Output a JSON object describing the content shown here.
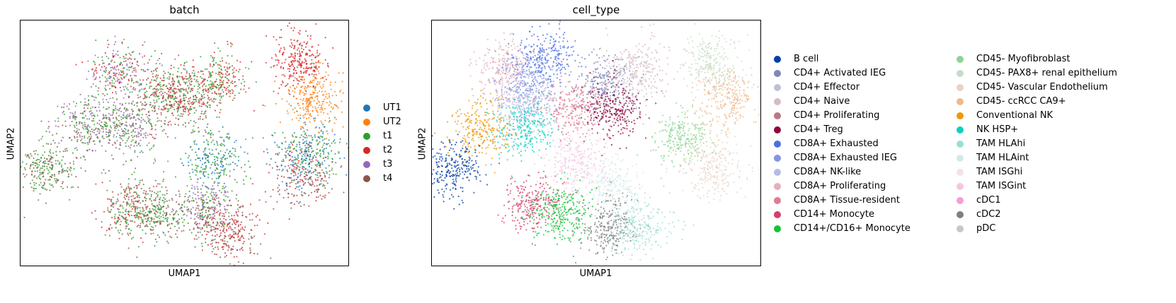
{
  "chart_data": [
    {
      "type": "scatter",
      "title": "batch",
      "xlabel": "UMAP1",
      "ylabel": "UMAP2",
      "legend_placement": "right",
      "grid": false,
      "series": [
        {
          "name": "UT1",
          "color": "#1f77b4"
        },
        {
          "name": "UT2",
          "color": "#ff7f0e"
        },
        {
          "name": "t1",
          "color": "#2ca02c"
        },
        {
          "name": "t2",
          "color": "#d62728"
        },
        {
          "name": "t3",
          "color": "#9467bd"
        },
        {
          "name": "t4",
          "color": "#8c564b"
        }
      ],
      "clusters": [
        {
          "x": 0.3,
          "y": 0.78,
          "mix": [
            "t1",
            "t2",
            "t3"
          ]
        },
        {
          "x": 0.43,
          "y": 0.7,
          "mix": [
            "t1",
            "t4",
            "t2"
          ]
        },
        {
          "x": 0.6,
          "y": 0.75,
          "mix": [
            "t1",
            "t2"
          ]
        },
        {
          "x": 0.21,
          "y": 0.57,
          "mix": [
            "t4",
            "t1",
            "t3"
          ]
        },
        {
          "x": 0.33,
          "y": 0.57,
          "mix": [
            "t3",
            "t1",
            "t4"
          ]
        },
        {
          "x": 0.5,
          "y": 0.69,
          "mix": [
            "t2",
            "t4",
            "t1"
          ]
        },
        {
          "x": 0.85,
          "y": 0.83,
          "mix": [
            "t2"
          ]
        },
        {
          "x": 0.89,
          "y": 0.68,
          "mix": [
            "UT2"
          ]
        },
        {
          "x": 0.88,
          "y": 0.47,
          "mix": [
            "t1",
            "UT1"
          ]
        },
        {
          "x": 0.86,
          "y": 0.37,
          "mix": [
            "t2",
            "t4",
            "UT1"
          ]
        },
        {
          "x": 0.08,
          "y": 0.4,
          "mix": [
            "t4",
            "t1"
          ]
        },
        {
          "x": 0.59,
          "y": 0.43,
          "mix": [
            "UT1",
            "t1"
          ]
        },
        {
          "x": 0.33,
          "y": 0.23,
          "mix": [
            "t4",
            "t1",
            "t2"
          ]
        },
        {
          "x": 0.43,
          "y": 0.22,
          "mix": [
            "t1",
            "t4"
          ]
        },
        {
          "x": 0.56,
          "y": 0.22,
          "mix": [
            "t4",
            "t3",
            "t1"
          ]
        },
        {
          "x": 0.64,
          "y": 0.14,
          "mix": [
            "t2",
            "t4"
          ]
        }
      ]
    },
    {
      "type": "scatter",
      "title": "cell_type",
      "xlabel": "UMAP1",
      "ylabel": "UMAP2",
      "legend_placement": "right",
      "grid": false,
      "series": [
        {
          "name": "B cell",
          "color": "#023fa5"
        },
        {
          "name": "CD4+ Activated IEG",
          "color": "#7d87b9"
        },
        {
          "name": "CD4+ Effector",
          "color": "#bec1d4"
        },
        {
          "name": "CD4+ Naive",
          "color": "#d6bcc0"
        },
        {
          "name": "CD4+ Proliferating",
          "color": "#bb7784"
        },
        {
          "name": "CD4+ Treg",
          "color": "#8e063b"
        },
        {
          "name": "CD8A+ Exhausted",
          "color": "#4a6fe3"
        },
        {
          "name": "CD8A+ Exhausted IEG",
          "color": "#8595e1"
        },
        {
          "name": "CD8A+ NK-like",
          "color": "#b5bbe3"
        },
        {
          "name": "CD8A+ Proliferating",
          "color": "#e6afb9"
        },
        {
          "name": "CD8A+ Tissue-resident",
          "color": "#e07b91"
        },
        {
          "name": "CD14+ Monocyte",
          "color": "#d33f6a"
        },
        {
          "name": "CD14+/CD16+ Monocyte",
          "color": "#11c638"
        },
        {
          "name": "CD45- Myofibroblast",
          "color": "#8dd593"
        },
        {
          "name": "CD45- PAX8+ renal epithelium",
          "color": "#c6dec7"
        },
        {
          "name": "CD45- Vascular Endothelium",
          "color": "#ead3c6"
        },
        {
          "name": "CD45- ccRCC CA9+",
          "color": "#f0b98d"
        },
        {
          "name": "Conventional NK",
          "color": "#ef9708"
        },
        {
          "name": "NK HSP+",
          "color": "#0fcfc0"
        },
        {
          "name": "TAM HLAhi",
          "color": "#9cded6"
        },
        {
          "name": "TAM HLAint",
          "color": "#d5eae7"
        },
        {
          "name": "TAM ISGhi",
          "color": "#f3e1eb"
        },
        {
          "name": "TAM ISGint",
          "color": "#f6c4e1"
        },
        {
          "name": "cDC1",
          "color": "#f79cd4"
        },
        {
          "name": "cDC2",
          "color": "#7f7f7f"
        },
        {
          "name": "pDC",
          "color": "#c7c7c7"
        }
      ],
      "clusters": [
        {
          "x": 0.22,
          "y": 0.8,
          "type": "CD8A+ Proliferating"
        },
        {
          "x": 0.35,
          "y": 0.85,
          "type": "CD8A+ Exhausted"
        },
        {
          "x": 0.29,
          "y": 0.75,
          "type": "CD8A+ Exhausted IEG"
        },
        {
          "x": 0.53,
          "y": 0.74,
          "type": "CD4+ Activated IEG"
        },
        {
          "x": 0.62,
          "y": 0.79,
          "type": "CD4+ Naive"
        },
        {
          "x": 0.43,
          "y": 0.64,
          "type": "CD8A+ Tissue-resident"
        },
        {
          "x": 0.55,
          "y": 0.63,
          "type": "CD4+ Treg"
        },
        {
          "x": 0.29,
          "y": 0.65,
          "type": "CD8A+ NK-like"
        },
        {
          "x": 0.15,
          "y": 0.56,
          "type": "Conventional NK"
        },
        {
          "x": 0.28,
          "y": 0.56,
          "type": "NK HSP+"
        },
        {
          "x": 0.85,
          "y": 0.82,
          "type": "CD45- PAX8+ renal epithelium"
        },
        {
          "x": 0.9,
          "y": 0.68,
          "type": "CD45- ccRCC CA9+"
        },
        {
          "x": 0.76,
          "y": 0.52,
          "type": "CD45- Myofibroblast"
        },
        {
          "x": 0.85,
          "y": 0.4,
          "type": "CD45- Vascular Endothelium"
        },
        {
          "x": 0.06,
          "y": 0.4,
          "type": "B cell"
        },
        {
          "x": 0.44,
          "y": 0.42,
          "type": "TAM ISGint"
        },
        {
          "x": 0.55,
          "y": 0.32,
          "type": "TAM HLAint"
        },
        {
          "x": 0.31,
          "y": 0.25,
          "type": "CD14+ Monocyte"
        },
        {
          "x": 0.39,
          "y": 0.22,
          "type": "CD14+/CD16+ Monocyte"
        },
        {
          "x": 0.54,
          "y": 0.16,
          "type": "cDC2"
        },
        {
          "x": 0.63,
          "y": 0.16,
          "type": "TAM HLAhi"
        }
      ]
    }
  ]
}
